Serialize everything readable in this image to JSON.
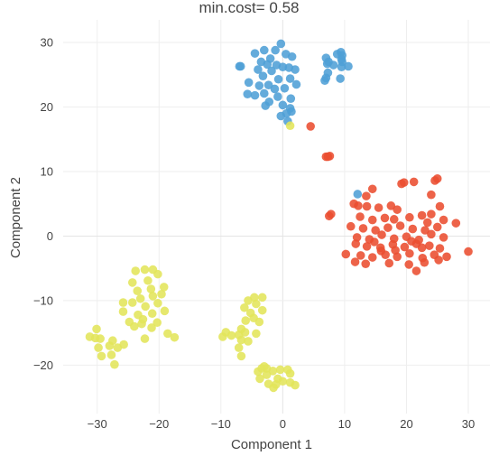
{
  "chart_data": {
    "type": "scatter",
    "title": "min.cost= 0.58",
    "xlabel": "Component 1",
    "ylabel": "Component 2",
    "xlim": [
      -35.5,
      33.5
    ],
    "ylim": [
      -27.5,
      33.5
    ],
    "xticks": [
      -30,
      -20,
      -10,
      0,
      10,
      20,
      30
    ],
    "yticks": [
      -20,
      -10,
      0,
      10,
      20,
      30
    ],
    "tick_labels_x": [
      "−30",
      "−20",
      "−10",
      "0",
      "10",
      "20",
      "30"
    ],
    "tick_labels_y": [
      "−20",
      "−10",
      "0",
      "10",
      "20",
      "30"
    ],
    "grid": true,
    "legend": "none",
    "series": [
      {
        "color": "#4f9fd6",
        "points": [
          [
            -7,
            26.3
          ],
          [
            -6.8,
            26.3
          ],
          [
            -3,
            28.8
          ],
          [
            -1.2,
            28.8
          ],
          [
            -0.3,
            29.8
          ],
          [
            -4.5,
            28.3
          ],
          [
            0.5,
            28.2
          ],
          [
            1.5,
            27.8
          ],
          [
            -2,
            27.5
          ],
          [
            -3.5,
            27
          ],
          [
            -2.5,
            26.6
          ],
          [
            -1,
            26.5
          ],
          [
            0,
            26.2
          ],
          [
            1,
            26.1
          ],
          [
            -4,
            25.8
          ],
          [
            -1.8,
            25.6
          ],
          [
            2,
            25.8
          ],
          [
            -3.2,
            24.8
          ],
          [
            -0.7,
            24.3
          ],
          [
            1.2,
            24.4
          ],
          [
            -5.5,
            23.8
          ],
          [
            -3.8,
            23.3
          ],
          [
            -2.3,
            23.4
          ],
          [
            2.2,
            23.5
          ],
          [
            -1.3,
            22.8
          ],
          [
            0.3,
            22.9
          ],
          [
            -5.7,
            22
          ],
          [
            -4.5,
            21.8
          ],
          [
            -3,
            22.1
          ],
          [
            -0.8,
            21.6
          ],
          [
            1.3,
            21.3
          ],
          [
            -2.2,
            20.8
          ],
          [
            0,
            20.3
          ],
          [
            1.2,
            19.8
          ],
          [
            -2.8,
            20.2
          ],
          [
            1.4,
            19.3
          ],
          [
            0.6,
            19
          ],
          [
            -0.3,
            18.6
          ],
          [
            0.8,
            17.8
          ],
          [
            7,
            27.6
          ],
          [
            7.4,
            27
          ],
          [
            7.2,
            26.7
          ],
          [
            8.2,
            26.5
          ],
          [
            7.3,
            25.3
          ],
          [
            7,
            24.5
          ],
          [
            6.8,
            24.1
          ],
          [
            9.3,
            24.4
          ],
          [
            10.6,
            26.3
          ],
          [
            9.6,
            27
          ],
          [
            9.5,
            26.2
          ],
          [
            9.4,
            28.5
          ],
          [
            8.8,
            28.2
          ],
          [
            9.6,
            28
          ],
          [
            9.5,
            27.4
          ],
          [
            12.1,
            6.5
          ]
        ]
      },
      {
        "color": "#eb4d30",
        "points": [
          [
            4.5,
            17
          ],
          [
            7,
            12.3
          ],
          [
            7.3,
            12.3
          ],
          [
            7.6,
            12.4
          ],
          [
            7.8,
            3.4
          ],
          [
            7.5,
            3.1
          ],
          [
            14.5,
            7.3
          ],
          [
            13.5,
            6.2
          ],
          [
            11.5,
            5
          ],
          [
            12.2,
            4.7
          ],
          [
            13.6,
            4.6
          ],
          [
            15.5,
            4.4
          ],
          [
            17.5,
            4.7
          ],
          [
            18.5,
            4.1
          ],
          [
            19.2,
            8.1
          ],
          [
            19.6,
            8.3
          ],
          [
            21.2,
            8.4
          ],
          [
            24.6,
            8.6
          ],
          [
            25,
            8.9
          ],
          [
            24,
            6.4
          ],
          [
            25.4,
            4.6
          ],
          [
            28,
            2
          ],
          [
            30,
            -2.4
          ],
          [
            12.5,
            3
          ],
          [
            14.5,
            2.5
          ],
          [
            16.5,
            2.8
          ],
          [
            18,
            2.6
          ],
          [
            20.5,
            2.9
          ],
          [
            22.5,
            3.2
          ],
          [
            24,
            3.4
          ],
          [
            26,
            2.5
          ],
          [
            11,
            1.5
          ],
          [
            13,
            1.2
          ],
          [
            15,
            0.9
          ],
          [
            17,
            1.3
          ],
          [
            19,
            1.6
          ],
          [
            21,
            1.1
          ],
          [
            23,
            0.9
          ],
          [
            25,
            1.4
          ],
          [
            12,
            -0.2
          ],
          [
            14,
            -0.5
          ],
          [
            16,
            0.2
          ],
          [
            18,
            -0.4
          ],
          [
            20,
            -0.1
          ],
          [
            22,
            -0.6
          ],
          [
            24,
            0.3
          ],
          [
            26,
            -0.2
          ],
          [
            11.8,
            -1.2
          ],
          [
            13.6,
            -1.6
          ],
          [
            15.8,
            -1.8
          ],
          [
            17.8,
            -1.3
          ],
          [
            19.7,
            -1.7
          ],
          [
            21.6,
            -1.2
          ],
          [
            23.7,
            -1.5
          ],
          [
            25.4,
            -1.9
          ],
          [
            10.2,
            -2.8
          ],
          [
            12.6,
            -3
          ],
          [
            14.5,
            -3.3
          ],
          [
            16.6,
            -2.9
          ],
          [
            18.5,
            -3.2
          ],
          [
            20.5,
            -2.7
          ],
          [
            22.6,
            -3.4
          ],
          [
            24.5,
            -2.9
          ],
          [
            26.5,
            -3.2
          ],
          [
            11.7,
            -4
          ],
          [
            13.4,
            -4.3
          ],
          [
            17.2,
            -4.2
          ],
          [
            20.4,
            -4.4
          ],
          [
            22.9,
            -4.1
          ],
          [
            25.2,
            -3.7
          ],
          [
            21.6,
            -5.4
          ],
          [
            18.2,
            -2.2
          ],
          [
            14.8,
            -0.9
          ],
          [
            20.8,
            -0.8
          ],
          [
            23.4,
            2.1
          ],
          [
            15.9,
            -2.3
          ],
          [
            22.5,
            -1.8
          ]
        ]
      },
      {
        "color": "#e3e55a",
        "points": [
          [
            1.2,
            17.1
          ],
          [
            -22.3,
            -5.2
          ],
          [
            -21,
            -5.2
          ],
          [
            -23.8,
            -5.4
          ],
          [
            -20.2,
            -5.9
          ],
          [
            -21.8,
            -6.9
          ],
          [
            -24.3,
            -7.2
          ],
          [
            -19.2,
            -7.9
          ],
          [
            -21.3,
            -8.2
          ],
          [
            -23.5,
            -8.5
          ],
          [
            -19.6,
            -9
          ],
          [
            -21,
            -9.3
          ],
          [
            -23,
            -9.7
          ],
          [
            -25.8,
            -10.3
          ],
          [
            -24.3,
            -10.3
          ],
          [
            -20.2,
            -10.4
          ],
          [
            -22.2,
            -10.9
          ],
          [
            -25.8,
            -11.7
          ],
          [
            -19.1,
            -11.6
          ],
          [
            -21.1,
            -12
          ],
          [
            -23.4,
            -12.2
          ],
          [
            -22.6,
            -12.9
          ],
          [
            -24.8,
            -13.3
          ],
          [
            -20.3,
            -13.4
          ],
          [
            -22.8,
            -13.6
          ],
          [
            -24,
            -14
          ],
          [
            -21.2,
            -14.2
          ],
          [
            -18.6,
            -15.1
          ],
          [
            -17.5,
            -15.7
          ],
          [
            -22.3,
            -15.9
          ],
          [
            -31.2,
            -15.6
          ],
          [
            -30.3,
            -15.8
          ],
          [
            -30.1,
            -14.4
          ],
          [
            -29.5,
            -15.9
          ],
          [
            -27.5,
            -16.2
          ],
          [
            -25.7,
            -16.8
          ],
          [
            -28,
            -17
          ],
          [
            -29.8,
            -17.3
          ],
          [
            -26.7,
            -17.3
          ],
          [
            -27.7,
            -18.4
          ],
          [
            -29.3,
            -18.6
          ],
          [
            -27.2,
            -19.9
          ],
          [
            -9.7,
            -15.6
          ],
          [
            -9.2,
            -14.9
          ],
          [
            -8.3,
            -15.4
          ],
          [
            -7.1,
            -15.3
          ],
          [
            -6.7,
            -14.4
          ],
          [
            -6.1,
            -14.9
          ],
          [
            -6.7,
            -16.1
          ],
          [
            -5.6,
            -16.3
          ],
          [
            -4.3,
            -15.1
          ],
          [
            -7.1,
            -17.3
          ],
          [
            -6.7,
            -18.6
          ],
          [
            -6.2,
            -11.1
          ],
          [
            -5.2,
            -11.9
          ],
          [
            -4.7,
            -12.7
          ],
          [
            -3.8,
            -13.3
          ],
          [
            -6,
            -13.1
          ],
          [
            -5.6,
            -10
          ],
          [
            -4.6,
            -9.5
          ],
          [
            -3.3,
            -9.5
          ],
          [
            -4.3,
            -10.5
          ],
          [
            -3.3,
            -11.5
          ],
          [
            -4,
            -21
          ],
          [
            -3.4,
            -20.5
          ],
          [
            -2.6,
            -20.5
          ],
          [
            -1.6,
            -20.9
          ],
          [
            -0.4,
            -20.7
          ],
          [
            -3.7,
            -22.1
          ],
          [
            -2.6,
            -21.5
          ],
          [
            -0.8,
            -22.1
          ],
          [
            0.8,
            -20.7
          ],
          [
            1.2,
            -21.3
          ],
          [
            -1.1,
            -23
          ],
          [
            0,
            -22.5
          ],
          [
            1.2,
            -22.7
          ],
          [
            2,
            -23.1
          ],
          [
            -2.3,
            -22.9
          ],
          [
            -1.5,
            -23.5
          ],
          [
            -3,
            -20.2
          ]
        ]
      }
    ]
  }
}
